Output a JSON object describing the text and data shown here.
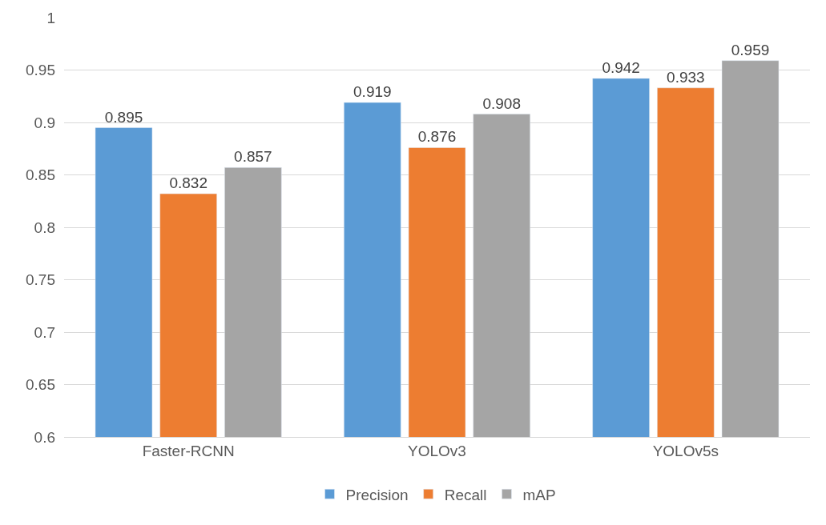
{
  "chart_data": {
    "type": "bar",
    "categories": [
      "Faster-RCNN",
      "YOLOv3",
      "YOLOv5s"
    ],
    "series": [
      {
        "name": "Precision",
        "color": "#5b9bd5",
        "values": [
          0.895,
          0.919,
          0.942
        ]
      },
      {
        "name": "Recall",
        "color": "#ed7d31",
        "values": [
          0.832,
          0.876,
          0.933
        ]
      },
      {
        "name": "mAP",
        "color": "#a5a5a5",
        "values": [
          0.857,
          0.908,
          0.959
        ]
      }
    ],
    "ylim": [
      0.6,
      1
    ],
    "yticks": [
      0.6,
      0.65,
      0.7,
      0.75,
      0.8,
      0.85,
      0.9,
      0.95,
      1
    ],
    "grid": "y",
    "legend": "bottom",
    "data_labels": true
  }
}
